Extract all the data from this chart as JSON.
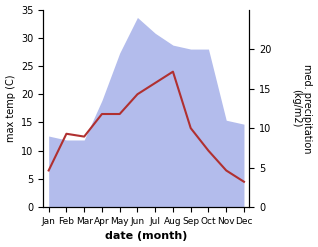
{
  "months": [
    "Jan",
    "Feb",
    "Mar",
    "Apr",
    "May",
    "Jun",
    "Jul",
    "Aug",
    "Sep",
    "Oct",
    "Nov",
    "Dec"
  ],
  "temperature": [
    6.5,
    13.0,
    12.5,
    16.5,
    16.5,
    20.0,
    22.0,
    24.0,
    14.0,
    10.0,
    6.5,
    4.5
  ],
  "precipitation": [
    9.0,
    8.5,
    8.5,
    13.5,
    19.5,
    24.0,
    22.0,
    20.5,
    20.0,
    20.0,
    11.0,
    10.5
  ],
  "temp_ylim": [
    0,
    35
  ],
  "precip_ylim": [
    0,
    25
  ],
  "precip_color": "#b3bcec",
  "temp_color": "#b03030",
  "xlabel": "date (month)",
  "ylabel_left": "max temp (C)",
  "ylabel_right": "med. precipitation\n(kg/m2)",
  "background_color": "#ffffff",
  "precip_yticks": [
    0,
    5,
    10,
    15,
    20
  ],
  "temp_yticks": [
    0,
    5,
    10,
    15,
    20,
    25,
    30,
    35
  ]
}
